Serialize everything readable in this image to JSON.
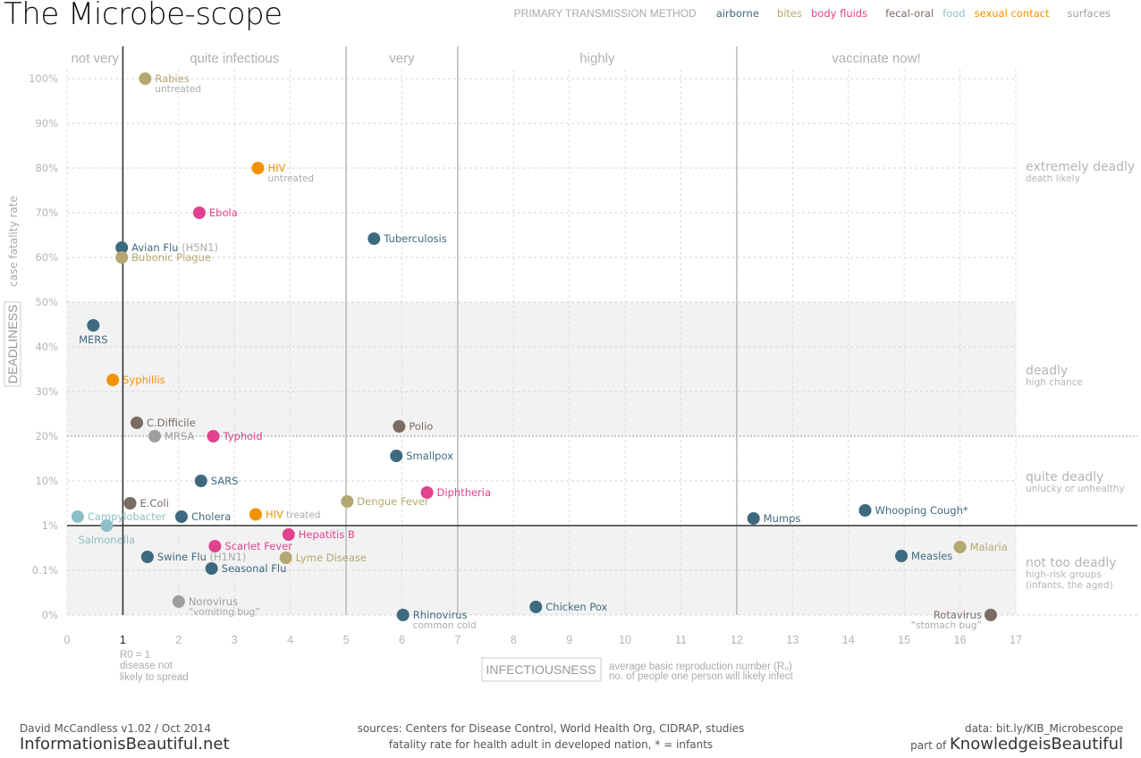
{
  "page": {
    "title": "The Microbe-scope",
    "legend_title": "PRIMARY TRANSMISSION METHOD"
  },
  "transmission_colors": {
    "airborne": "#3e6a80",
    "bites": "#b5a771",
    "body fluids": "#e0428e",
    "fecal-oral": "#7a6b63",
    "food": "#8ebfc6",
    "sexual contact": "#f39200",
    "surfaces": "#9e9e9e"
  },
  "legend": [
    {
      "label": "airborne",
      "color": "#3e6a80"
    },
    {
      "label": "bites",
      "color": "#b5a771"
    },
    {
      "label": "body fluids",
      "color": "#e0428e"
    },
    {
      "label": "fecal-oral",
      "color": "#7a6b63"
    },
    {
      "label": "food",
      "color": "#8ebfc6"
    },
    {
      "label": "sexual contact",
      "color": "#f39200"
    },
    {
      "label": "surfaces",
      "color": "#9e9e9e"
    }
  ],
  "footer": {
    "author": "David McCandless v1.02 / Oct 2014",
    "site": "InformationisBeautiful.net",
    "sources": "sources: Centers for Disease Control, World Health Org, CIDRAP, studies",
    "note": "fatality rate for health adult in developed nation, * = infants",
    "data_link": "data: bit.ly/KIB_Microbescope",
    "part_of": "part of",
    "brand": "KnowledgeisBeautiful"
  },
  "chart_data": {
    "type": "scatter",
    "title": "The Microbe-scope",
    "xlabel": "INFECTIOUSNESS",
    "xlabel_desc": "average basic reproduction number (R₀)",
    "xlabel_sub": "no. of people one person will likely infect",
    "ylabel": "DEADLINESS",
    "ylabel_desc": "case fatality rate",
    "xlim": [
      0,
      17
    ],
    "x_ticks": [
      "0",
      "1",
      "2",
      "3",
      "4",
      "5",
      "6",
      "7",
      "8",
      "9",
      "10",
      "11",
      "12",
      "13",
      "14",
      "15",
      "16",
      "17"
    ],
    "y_ticks": [
      "100%",
      "90%",
      "80%",
      "70%",
      "60%",
      "50%",
      "40%",
      "30%",
      "20%",
      "10%",
      "1%",
      "0.1%",
      "0%"
    ],
    "y_scale_note": "piecewise: 0%, 0.1%, 1%, then linear 10%..100%",
    "grid": true,
    "r0_note": [
      "R0 = 1",
      "disease not",
      "likely to spread"
    ],
    "infectiousness_bands": [
      {
        "label": "not very",
        "from": 0,
        "to": 1
      },
      {
        "label": "quite infectious",
        "from": 1,
        "to": 5
      },
      {
        "label": "very",
        "from": 5,
        "to": 7
      },
      {
        "label": "highly",
        "from": 7,
        "to": 12
      },
      {
        "label": "vaccinate now!",
        "from": 12,
        "to": 17
      }
    ],
    "deadliness_regions": [
      {
        "title": "extremely deadly",
        "sub": [
          "death likely"
        ]
      },
      {
        "title": "deadly",
        "sub": [
          "high chance"
        ]
      },
      {
        "title": "quite deadly",
        "sub": [
          "unlucky or unhealthy"
        ]
      },
      {
        "title": "not too deadly",
        "sub": [
          "high-risk groups",
          "(infants, the aged)"
        ]
      }
    ],
    "points": [
      {
        "name": "Rabies",
        "sub": "untreated",
        "x": 1.4,
        "y_tick": 0.0,
        "method": "bites",
        "label_side": "right"
      },
      {
        "name": "HIV",
        "sub": "untreated",
        "x": 3.42,
        "y_tick": 2.0,
        "method": "sexual contact",
        "label_side": "right"
      },
      {
        "name": "Ebola",
        "x": 2.37,
        "y_tick": 3.0,
        "method": "body fluids",
        "label_side": "right"
      },
      {
        "name": "Tuberculosis",
        "x": 5.5,
        "y_tick": 3.58,
        "method": "airborne",
        "label_side": "right"
      },
      {
        "name": "Avian Flu",
        "extra": "(H5N1)",
        "x": 0.98,
        "y_tick": 3.78,
        "method": "airborne",
        "label_side": "right"
      },
      {
        "name": "Bubonic Plague",
        "x": 0.98,
        "y_tick": 4.0,
        "method": "bites",
        "label_side": "right"
      },
      {
        "name": "MERS",
        "x": 0.47,
        "y_tick": 5.52,
        "method": "airborne",
        "label_side": "below"
      },
      {
        "name": "Syphillis",
        "x": 0.82,
        "y_tick": 6.74,
        "method": "sexual contact",
        "label_side": "right"
      },
      {
        "name": "C.Difficile",
        "x": 1.25,
        "y_tick": 7.7,
        "method": "fecal-oral",
        "label_side": "right"
      },
      {
        "name": "MRSA",
        "x": 1.57,
        "y_tick": 8.0,
        "method": "surfaces",
        "label_side": "right"
      },
      {
        "name": "Typhoid",
        "x": 2.62,
        "y_tick": 8.0,
        "method": "body fluids",
        "label_side": "right"
      },
      {
        "name": "Polio",
        "x": 5.95,
        "y_tick": 7.78,
        "method": "fecal-oral",
        "label_side": "right"
      },
      {
        "name": "Smallpox",
        "x": 5.9,
        "y_tick": 8.44,
        "method": "airborne",
        "label_side": "right"
      },
      {
        "name": "SARS",
        "x": 2.4,
        "y_tick": 9.0,
        "method": "airborne",
        "label_side": "right"
      },
      {
        "name": "Diphtheria",
        "x": 6.45,
        "y_tick": 9.26,
        "method": "body fluids",
        "label_side": "right"
      },
      {
        "name": "Dengue Fever",
        "x": 5.02,
        "y_tick": 9.46,
        "method": "bites",
        "label_side": "right"
      },
      {
        "name": "E.Coli",
        "x": 1.13,
        "y_tick": 9.5,
        "method": "fecal-oral",
        "label_side": "right"
      },
      {
        "name": "Campylobacter",
        "x": 0.19,
        "y_tick": 9.8,
        "method": "food",
        "label_side": "right"
      },
      {
        "name": "Cholera",
        "x": 2.05,
        "y_tick": 9.8,
        "method": "airborne",
        "label_side": "right"
      },
      {
        "name": "HIV",
        "sub_inline": "treated",
        "x": 3.38,
        "y_tick": 9.75,
        "method": "sexual contact",
        "label_side": "right"
      },
      {
        "name": "Salmonella",
        "x": 0.71,
        "y_tick": 10.0,
        "method": "food",
        "label_side": "below"
      },
      {
        "name": "Mumps",
        "x": 12.3,
        "y_tick": 9.84,
        "method": "airborne",
        "label_side": "right"
      },
      {
        "name": "Whooping Cough*",
        "x": 14.3,
        "y_tick": 9.66,
        "method": "airborne",
        "label_side": "right"
      },
      {
        "name": "Hepatitis B",
        "x": 3.97,
        "y_tick": 10.2,
        "method": "body fluids",
        "label_side": "right"
      },
      {
        "name": "Scarlet Fever",
        "x": 2.65,
        "y_tick": 10.46,
        "method": "body fluids",
        "label_side": "right"
      },
      {
        "name": "Swine Flu",
        "extra": "(H1N1)",
        "x": 1.44,
        "y_tick": 10.7,
        "method": "airborne",
        "label_side": "right"
      },
      {
        "name": "Lyme Disease",
        "x": 3.92,
        "y_tick": 10.72,
        "method": "bites",
        "label_side": "right"
      },
      {
        "name": "Seasonal Flu",
        "x": 2.59,
        "y_tick": 10.96,
        "method": "airborne",
        "label_side": "right"
      },
      {
        "name": "Malaria",
        "x": 16.0,
        "y_tick": 10.48,
        "method": "bites",
        "label_side": "right"
      },
      {
        "name": "Measles",
        "x": 14.95,
        "y_tick": 10.68,
        "method": "airborne",
        "label_side": "right"
      },
      {
        "name": "Norovirus",
        "sub": "“vomiting bug”",
        "x": 2.0,
        "y_tick": 11.7,
        "method": "surfaces",
        "label_side": "right"
      },
      {
        "name": "Chicken Pox",
        "x": 8.4,
        "y_tick": 11.82,
        "method": "airborne",
        "label_side": "right"
      },
      {
        "name": "Rhinovirus",
        "sub": "common cold",
        "x": 6.02,
        "y_tick": 12.0,
        "method": "airborne",
        "label_side": "right"
      },
      {
        "name": "Rotavirus",
        "sub": "“stomach bug”",
        "x": 16.55,
        "y_tick": 12.0,
        "method": "fecal-oral",
        "label_side": "left"
      }
    ]
  }
}
